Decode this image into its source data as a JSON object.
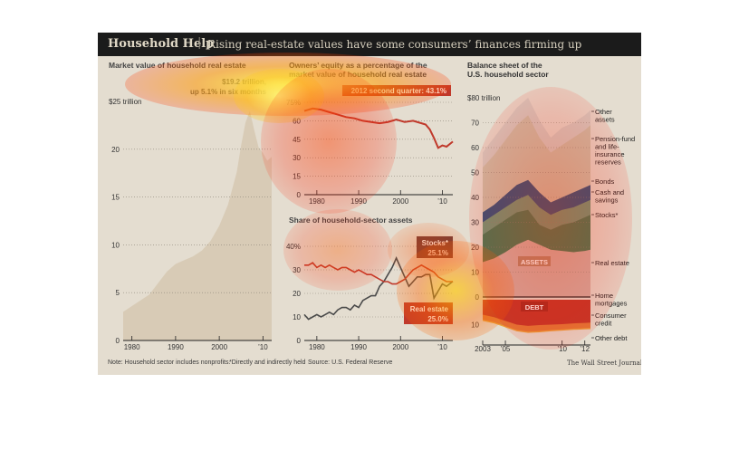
{
  "header": {
    "title": "Household Help",
    "separator": "|",
    "subtitle": "Rising real-estate values have some consumers’ finances firming up"
  },
  "footer": {
    "note": "Note: Household sector includes nonprofits.",
    "footnote": "*Directly and indirectly held",
    "source": "Source: U.S. Federal Reserve",
    "credit": "The Wall Street Journal"
  },
  "chart_data": [
    {
      "type": "area",
      "title": "Market value of household real estate",
      "annotation": [
        "$19.2 trillion,",
        "up 5.1% in six months"
      ],
      "top_tick_label": "$25 trillion",
      "y_ticks": [
        0,
        5,
        10,
        15,
        20
      ],
      "x_ticks": [
        "1980",
        "1990",
        "2000",
        "’10"
      ],
      "xlim": [
        1978,
        2012
      ],
      "ylim": [
        0,
        25
      ],
      "color": "#d8cbb6",
      "x": [
        1978,
        1980,
        1982,
        1984,
        1986,
        1988,
        1990,
        1992,
        1994,
        1996,
        1998,
        2000,
        2002,
        2004,
        2005,
        2006,
        2007,
        2008,
        2009,
        2010,
        2011,
        2012
      ],
      "y": [
        3.0,
        3.6,
        4.2,
        4.8,
        6.0,
        7.2,
        8.0,
        8.4,
        8.8,
        9.4,
        10.4,
        12.0,
        14.2,
        17.6,
        20.4,
        22.8,
        24.0,
        22.0,
        20.2,
        19.6,
        18.8,
        19.2
      ]
    },
    {
      "type": "line",
      "title": [
        "Owners’ equity as a percentage of the",
        "market value of household real estate"
      ],
      "annotation": "2012 second quarter: 43.1%",
      "y_ticks": [
        0,
        15,
        30,
        45,
        60,
        "75%"
      ],
      "x_ticks": [
        "1980",
        "1990",
        "2000",
        "’10"
      ],
      "xlim": [
        1977,
        2012.5
      ],
      "ylim": [
        0,
        75
      ],
      "color": "#c0392b",
      "x": [
        1977,
        1979,
        1981,
        1983,
        1985,
        1987,
        1989,
        1991,
        1993,
        1995,
        1997,
        1999,
        2001,
        2003,
        2005,
        2006,
        2007,
        2008,
        2009,
        2010,
        2011,
        2012.5
      ],
      "y": [
        68,
        70,
        69,
        67,
        65,
        63,
        62,
        60,
        59,
        58,
        59,
        61,
        59,
        60,
        58,
        57,
        53,
        46,
        38,
        40,
        39,
        43.1
      ]
    },
    {
      "type": "line",
      "title": "Share of household-sector assets",
      "y_ticks": [
        0,
        10,
        20,
        30,
        "40%"
      ],
      "x_ticks": [
        "1980",
        "1990",
        "2000",
        "’10"
      ],
      "xlim": [
        1977,
        2012.5
      ],
      "ylim": [
        0,
        40
      ],
      "series": [
        {
          "name": "Stocks*",
          "label_value": "25.1%",
          "color": "#4a4a4a",
          "x": [
            1977,
            1978,
            1979,
            1980,
            1981,
            1982,
            1983,
            1984,
            1985,
            1986,
            1987,
            1988,
            1989,
            1990,
            1991,
            1992,
            1993,
            1994,
            1995,
            1996,
            1997,
            1998,
            1999,
            2000,
            2001,
            2002,
            2003,
            2004,
            2005,
            2006,
            2007,
            2008,
            2009,
            2010,
            2011,
            2012.5
          ],
          "y": [
            11,
            9,
            10,
            11,
            10,
            11,
            12,
            11,
            13,
            14,
            14,
            13,
            15,
            14,
            17,
            18,
            19,
            19,
            23,
            25,
            28,
            31,
            35,
            31,
            27,
            23,
            25,
            27,
            27,
            28,
            28,
            18,
            21,
            24,
            23,
            25.1
          ]
        },
        {
          "name": "Real estate",
          "label_value": "25.0%",
          "color": "#c0392b",
          "x": [
            1977,
            1978,
            1979,
            1980,
            1981,
            1982,
            1983,
            1984,
            1985,
            1986,
            1987,
            1988,
            1989,
            1990,
            1991,
            1992,
            1993,
            1994,
            1995,
            1996,
            1997,
            1998,
            1999,
            2000,
            2001,
            2002,
            2003,
            2004,
            2005,
            2006,
            2007,
            2008,
            2009,
            2010,
            2011,
            2012.5
          ],
          "y": [
            32,
            32,
            33,
            31,
            32,
            31,
            32,
            31,
            30,
            31,
            31,
            30,
            29,
            30,
            29,
            28,
            28,
            27,
            26,
            25,
            25,
            24,
            24,
            25,
            26,
            28,
            30,
            31,
            32,
            31,
            30,
            29,
            27,
            26,
            25,
            25.0
          ]
        }
      ]
    },
    {
      "type": "area",
      "title": [
        "Balance sheet of the",
        "U.S. household sector"
      ],
      "top_tick_label": "$80 trillion",
      "y_ticks": [
        0,
        10,
        20,
        30,
        40,
        50,
        60,
        70
      ],
      "liability_ticks": [
        10
      ],
      "x_ticks": [
        "2003",
        "’05",
        "’10",
        "’12"
      ],
      "x_tick_years": [
        2003,
        2005,
        2010,
        2012
      ],
      "xlim": [
        2003,
        2012.5
      ],
      "assets_label": "ASSETS",
      "debt_label": "DEBT",
      "x": [
        2003,
        2004,
        2005,
        2006,
        2007,
        2008,
        2009,
        2010,
        2011,
        2012,
        2012.5
      ],
      "assets_cumulative": [
        {
          "name": "Real estate",
          "color": "#d9b3aa",
          "y": [
            14,
            15.5,
            18,
            21,
            23,
            21,
            19,
            18.5,
            18,
            18.5,
            19
          ]
        },
        {
          "name": "Stocks*",
          "color": "#3f7a55",
          "y": [
            25,
            28,
            31,
            34,
            35,
            29,
            27,
            29,
            30,
            32,
            33
          ]
        },
        {
          "name": "Cash and savings",
          "color": "#6e9e79",
          "y": [
            30,
            33,
            36,
            39,
            41,
            36,
            33,
            35,
            36,
            38,
            39
          ]
        },
        {
          "name": "Bonds",
          "color": "#1f4f7d",
          "y": [
            34,
            37,
            41,
            45,
            47,
            42,
            38,
            40,
            42,
            44,
            45
          ]
        },
        {
          "name": "Pension-fund and life-insurance reserves",
          "color": "#c9c2aa",
          "y": [
            52,
            57,
            63,
            69,
            73,
            64,
            58,
            61,
            64,
            67,
            69
          ]
        },
        {
          "name": "Other assets",
          "color": "#d2cec5",
          "y": [
            58,
            64,
            70,
            76,
            80,
            71,
            64,
            68,
            70,
            73,
            75
          ]
        }
      ],
      "debt_cumulative": [
        {
          "name": "Home mortgages",
          "color": "#c0392b",
          "y": [
            6,
            7,
            8.5,
            10,
            10.5,
            10.2,
            10,
            9.8,
            9.5,
            9.3,
            9.2
          ]
        },
        {
          "name": "Consumer credit",
          "color": "#e07b39",
          "y": [
            8,
            9,
            10.6,
            12.2,
            12.8,
            12.6,
            12.2,
            11.9,
            11.6,
            11.4,
            11.3
          ]
        },
        {
          "name": "Other debt",
          "color": "#e9a23b",
          "y": [
            8.5,
            9.5,
            11.1,
            12.7,
            13.3,
            13.1,
            12.7,
            12.4,
            12.1,
            11.9,
            11.8
          ]
        }
      ],
      "legend": [
        "Other assets",
        "Pension-fund and life-insurance reserves",
        "Bonds",
        "Cash and savings",
        "Stocks*",
        "Real estate",
        "Home mortgages",
        "Consumer credit",
        "Other debt"
      ]
    }
  ]
}
